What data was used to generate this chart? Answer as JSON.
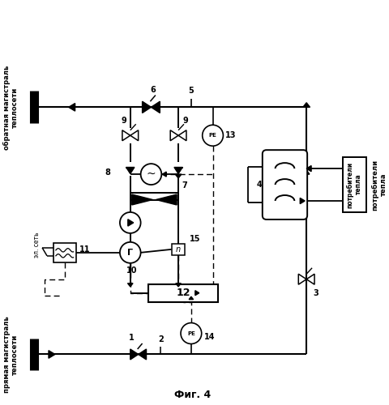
{
  "title": "Фиг. 4",
  "bg": "#ffffff",
  "figsize": [
    4.8,
    5.0
  ],
  "dpi": 100,
  "label_top": "обратная магистраль\nтеплосети",
  "label_bot": "прямая магистраль\nтеплосети",
  "label_consumer": "потребители\nтепла",
  "label_el": "эл. сеть"
}
